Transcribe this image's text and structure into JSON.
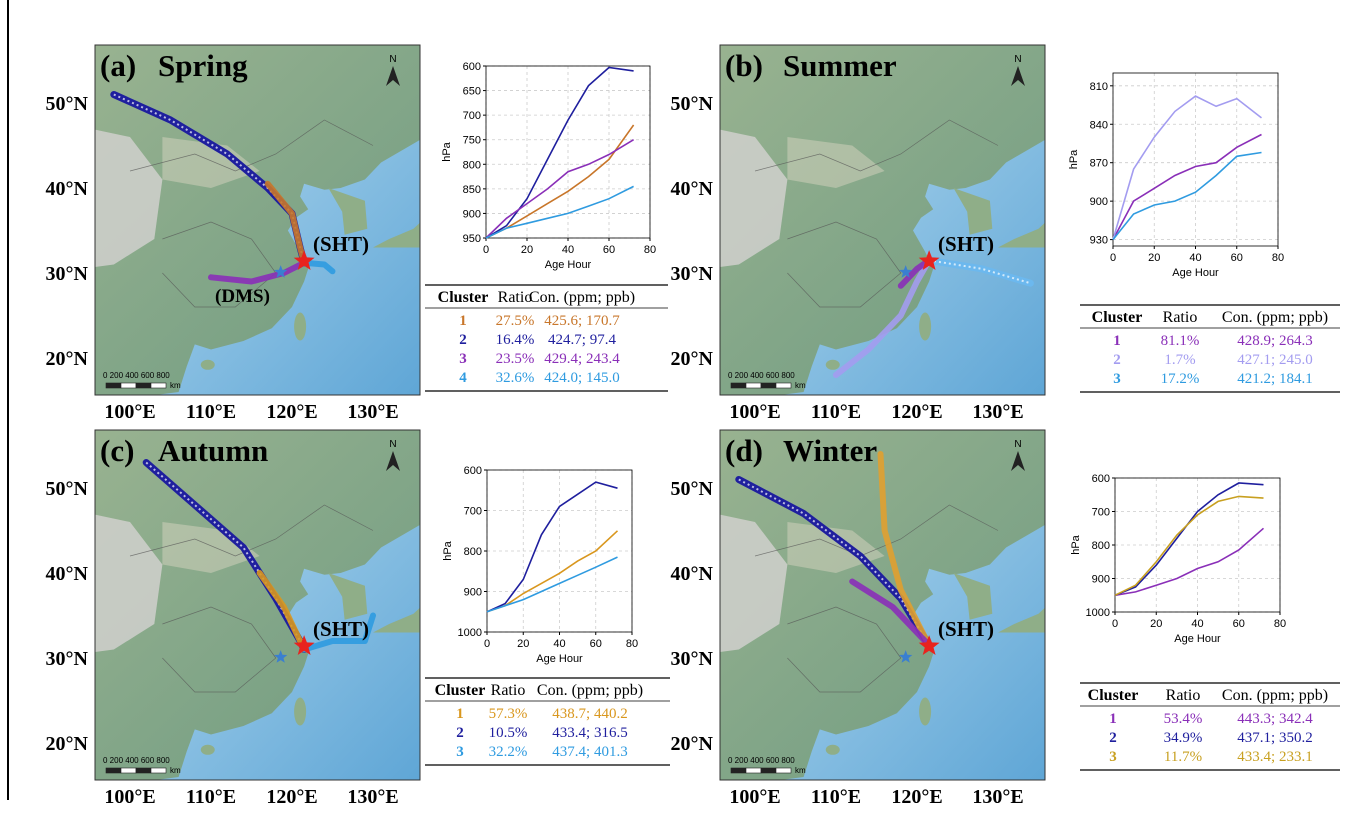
{
  "panels": [
    {
      "label": "(a)",
      "season": "Spring",
      "site": "(SHT)",
      "other_site": "(DMS)",
      "lat_labels": [
        "50°N",
        "40°N",
        "30°N",
        "20°N"
      ],
      "lon_labels": [
        "100°E",
        "110°E",
        "120°E",
        "130°E"
      ],
      "scale": "0  200 400 600 800",
      "scale_unit": "km",
      "north": "N",
      "table": {
        "header": [
          "Cluster",
          "Ratio",
          "Con. (ppm; ppb)"
        ],
        "rows": [
          [
            "27.5%",
            "425.6; 170.7"
          ],
          [
            "16.4%",
            "424.7;   97.4"
          ],
          [
            "23.5%",
            "429.4; 243.4"
          ],
          [
            "32.6%",
            "424.0; 145.0"
          ]
        ]
      }
    },
    {
      "label": "(b)",
      "season": "Summer",
      "site": "(SHT)",
      "lat_labels": [
        "50°N",
        "40°N",
        "30°N",
        "20°N"
      ],
      "lon_labels": [
        "100°E",
        "110°E",
        "120°E",
        "130°E"
      ],
      "scale": "0  200 400 600 800",
      "scale_unit": "km",
      "north": "N",
      "table": {
        "header": [
          "Cluster",
          "Ratio",
          "Con. (ppm; ppb)"
        ],
        "rows": [
          [
            "81.1%",
            "428.9; 264.3"
          ],
          [
            "1.7%",
            "427.1; 245.0"
          ],
          [
            "17.2%",
            "421.2; 184.1"
          ]
        ]
      }
    },
    {
      "label": "(c)",
      "season": "Autumn",
      "site": "(SHT)",
      "lat_labels": [
        "50°N",
        "40°N",
        "30°N",
        "20°N"
      ],
      "lon_labels": [
        "100°E",
        "110°E",
        "120°E",
        "130°E"
      ],
      "scale": "0  200 400 600 800",
      "scale_unit": "km",
      "north": "N",
      "table": {
        "header": [
          "Cluster",
          "Ratio",
          "Con. (ppm; ppb)"
        ],
        "rows": [
          [
            "57.3%",
            "438.7; 440.2"
          ],
          [
            "10.5%",
            "433.4; 316.5"
          ],
          [
            "32.2%",
            "437.4; 401.3"
          ]
        ]
      }
    },
    {
      "label": "(d)",
      "season": "Winter",
      "site": "(SHT)",
      "lat_labels": [
        "50°N",
        "40°N",
        "30°N",
        "20°N"
      ],
      "lon_labels": [
        "100°E",
        "110°E",
        "120°E",
        "130°E"
      ],
      "scale": "0  200 400 600 800",
      "scale_unit": "km",
      "north": "N",
      "table": {
        "header": [
          "Cluster",
          "Ratio",
          "Con. (ppm; ppb)"
        ],
        "rows": [
          [
            "53.4%",
            "443.3; 342.4"
          ],
          [
            "34.9%",
            "437.1; 350.2"
          ],
          [
            "11.7%",
            "433.4; 233.1"
          ]
        ]
      }
    }
  ],
  "chart_data": [
    {
      "type": "line",
      "x_label": "Age Hour",
      "y_label": "hPa",
      "grid": true,
      "x": [
        0,
        10,
        20,
        30,
        40,
        50,
        60,
        72
      ],
      "xlim": [
        0,
        80
      ],
      "xticks": [
        0,
        20,
        40,
        60,
        80
      ],
      "ylim": [
        950,
        600
      ],
      "yticks": [
        600,
        650,
        700,
        750,
        800,
        850,
        900,
        950
      ],
      "series": [
        {
          "name": "1",
          "color": "#c8762a",
          "values": [
            950,
            930,
            905,
            880,
            855,
            825,
            790,
            720
          ]
        },
        {
          "name": "2",
          "color": "#1f1f9e",
          "values": [
            950,
            925,
            870,
            790,
            710,
            640,
            603,
            610
          ]
        },
        {
          "name": "3",
          "color": "#8a2fb8",
          "values": [
            950,
            910,
            880,
            850,
            815,
            800,
            780,
            750
          ]
        },
        {
          "name": "4",
          "color": "#2f9be0",
          "values": [
            950,
            930,
            920,
            910,
            900,
            885,
            870,
            845
          ]
        }
      ]
    },
    {
      "type": "line",
      "x_label": "Age Hour",
      "y_label": "hPa",
      "grid": true,
      "x": [
        0,
        10,
        20,
        30,
        40,
        50,
        60,
        72
      ],
      "xlim": [
        0,
        80
      ],
      "xticks": [
        0,
        20,
        40,
        60,
        80
      ],
      "ylim": [
        935,
        800
      ],
      "yticks": [
        810,
        840,
        870,
        900,
        930
      ],
      "series": [
        {
          "name": "1",
          "color": "#8a2fb8",
          "values": [
            930,
            900,
            890,
            880,
            873,
            870,
            858,
            848
          ]
        },
        {
          "name": "2",
          "color": "#a39cf0",
          "values": [
            930,
            875,
            850,
            830,
            818,
            826,
            820,
            835
          ]
        },
        {
          "name": "3",
          "color": "#2f9be0",
          "values": [
            930,
            910,
            903,
            900,
            893,
            880,
            865,
            862
          ]
        }
      ]
    },
    {
      "type": "line",
      "x_label": "Age Hour",
      "y_label": "hPa",
      "grid": true,
      "x": [
        0,
        10,
        20,
        30,
        40,
        50,
        60,
        72
      ],
      "xlim": [
        0,
        80
      ],
      "xticks": [
        0,
        20,
        40,
        60,
        80
      ],
      "ylim": [
        1000,
        600
      ],
      "yticks": [
        600,
        700,
        800,
        900,
        1000
      ],
      "series": [
        {
          "name": "1",
          "color": "#d9971e",
          "values": [
            950,
            935,
            905,
            880,
            855,
            825,
            800,
            750
          ]
        },
        {
          "name": "2",
          "color": "#1f1f9e",
          "values": [
            950,
            930,
            870,
            760,
            690,
            660,
            630,
            645
          ]
        },
        {
          "name": "3",
          "color": "#2f9be0",
          "values": [
            950,
            935,
            920,
            900,
            880,
            860,
            840,
            815
          ]
        }
      ]
    },
    {
      "type": "line",
      "x_label": "Age Hour",
      "y_label": "hPa",
      "grid": true,
      "x": [
        0,
        10,
        20,
        30,
        40,
        50,
        60,
        72
      ],
      "xlim": [
        0,
        80
      ],
      "xticks": [
        0,
        20,
        40,
        60,
        80
      ],
      "ylim": [
        1000,
        600
      ],
      "yticks": [
        600,
        700,
        800,
        900,
        1000
      ],
      "series": [
        {
          "name": "1",
          "color": "#8a2fb8",
          "values": [
            950,
            940,
            920,
            900,
            870,
            850,
            815,
            750
          ]
        },
        {
          "name": "2",
          "color": "#1f1f9e",
          "values": [
            950,
            925,
            860,
            780,
            700,
            650,
            615,
            620
          ]
        },
        {
          "name": "3",
          "color": "#c8a020",
          "values": [
            950,
            920,
            850,
            770,
            710,
            670,
            655,
            660
          ]
        }
      ]
    }
  ]
}
